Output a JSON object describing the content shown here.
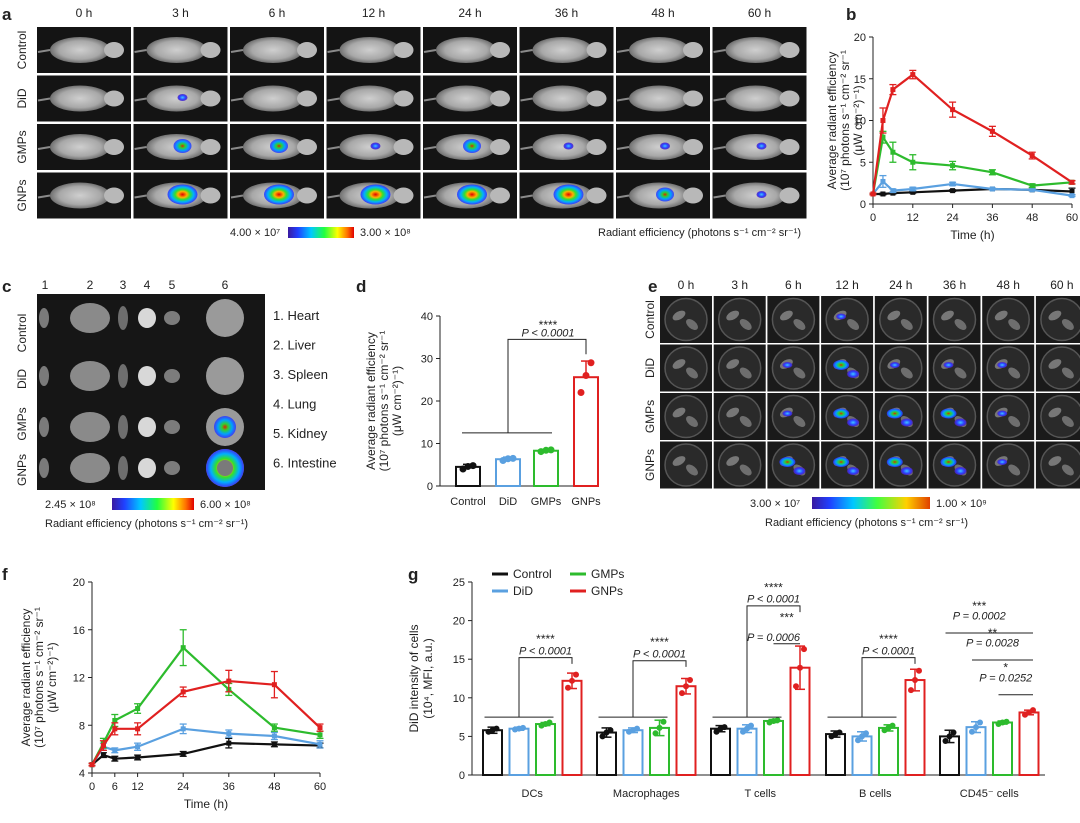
{
  "panels": {
    "a": {
      "letter": "a",
      "times": [
        "0 h",
        "3 h",
        "6 h",
        "12 h",
        "24 h",
        "36 h",
        "48 h",
        "60 h"
      ],
      "rows": [
        "Control",
        "DiD",
        "GMPs",
        "GNPs"
      ],
      "scale_min": "4.00 × 10⁷",
      "scale_max": "3.00 × 10⁸",
      "scale_label": "Radiant efficiency (photons s⁻¹ cm⁻² sr⁻¹)"
    },
    "c": {
      "letter": "c",
      "columns": [
        "1",
        "2",
        "3",
        "4",
        "5",
        "6"
      ],
      "rows": [
        "Control",
        "DiD",
        "GMPs",
        "GNPs"
      ],
      "legend": [
        "1. Heart",
        "2. Liver",
        "3. Spleen",
        "4. Lung",
        "5. Kidney",
        "6. Intestine"
      ],
      "scale_min": "2.45 × 10⁸",
      "scale_max": "6.00 × 10⁸",
      "scale_label": "Radiant efficiency (photons s⁻¹ cm⁻² sr⁻¹)"
    },
    "e": {
      "letter": "e",
      "times": [
        "0 h",
        "3 h",
        "6 h",
        "12 h",
        "24 h",
        "36 h",
        "48 h",
        "60 h"
      ],
      "rows": [
        "Control",
        "DiD",
        "GMPs",
        "GNPs"
      ],
      "scale_min": "3.00 × 10⁷",
      "scale_max": "1.00 × 10⁹",
      "scale_label": "Radiant efficiency (photons s⁻¹ cm⁻² sr⁻¹)"
    }
  },
  "chart_data": [
    {
      "id": "b",
      "type": "line",
      "letter": "b",
      "xlabel": "Time (h)",
      "ylabel": [
        "Average radiant efficiency",
        "(10⁷ photons s⁻¹ cm⁻² sr⁻¹",
        "(μW cm⁻²)⁻¹)"
      ],
      "xlim": [
        0,
        60
      ],
      "ylim": [
        0,
        20
      ],
      "xticks": [
        0,
        12,
        24,
        36,
        48,
        60
      ],
      "yticks": [
        0,
        5,
        10,
        15,
        20
      ],
      "series": [
        {
          "name": "Control",
          "color": "#111111",
          "x": [
            0,
            3,
            6,
            12,
            24,
            36,
            48,
            60
          ],
          "values": [
            1.2,
            1.2,
            1.3,
            1.4,
            1.6,
            1.8,
            1.7,
            1.5
          ],
          "err": [
            0.1,
            0.1,
            0.1,
            0.1,
            0.1,
            0.1,
            0.1,
            0.4
          ]
        },
        {
          "name": "DiD",
          "color": "#5aa0e0",
          "x": [
            0,
            3,
            6,
            12,
            24,
            36,
            48,
            60
          ],
          "values": [
            1.2,
            2.7,
            1.6,
            1.8,
            2.4,
            1.8,
            1.7,
            1.0
          ],
          "err": [
            0.1,
            0.7,
            0.2,
            0.2,
            0.2,
            0.1,
            0.1,
            0.1
          ]
        },
        {
          "name": "GMPs",
          "color": "#2dbb2d",
          "x": [
            0,
            3,
            6,
            12,
            24,
            36,
            48,
            60
          ],
          "values": [
            1.2,
            8.0,
            6.2,
            5.0,
            4.6,
            3.8,
            2.2,
            2.6
          ],
          "err": [
            0.1,
            0.7,
            1.2,
            0.9,
            0.5,
            0.3,
            0.2,
            0.2
          ]
        },
        {
          "name": "GNPs",
          "color": "#e02020",
          "x": [
            0,
            3,
            6,
            12,
            24,
            36,
            48,
            60
          ],
          "values": [
            1.2,
            10.0,
            13.7,
            15.5,
            11.3,
            8.7,
            5.8,
            2.6
          ],
          "err": [
            0.1,
            1.5,
            0.6,
            0.5,
            0.9,
            0.6,
            0.4,
            0.2
          ]
        }
      ]
    },
    {
      "id": "d",
      "type": "bar",
      "letter": "d",
      "categories": [
        "Control",
        "DiD",
        "GMPs",
        "GNPs"
      ],
      "colors": [
        "#111111",
        "#5aa0e0",
        "#2dbb2d",
        "#e02020"
      ],
      "values": [
        4.5,
        6.3,
        8.3,
        25.6
      ],
      "err": [
        0.6,
        0.5,
        0.3,
        3.8
      ],
      "points": [
        [
          4.0,
          4.6,
          4.8
        ],
        [
          6.0,
          6.4,
          6.5
        ],
        [
          8.1,
          8.4,
          8.5
        ],
        [
          22.0,
          26.0,
          29.0
        ]
      ],
      "ylim": [
        0,
        40
      ],
      "yticks": [
        0,
        10,
        20,
        30,
        40
      ],
      "ylabel": [
        "Average radiant efficiency",
        "(10⁷ photons s⁻¹ cm⁻² sr⁻¹",
        "(μW cm⁻²)⁻¹)"
      ],
      "sig_stars": "****",
      "sig_p": "P < 0.0001"
    },
    {
      "id": "f",
      "type": "line",
      "letter": "f",
      "xlabel": "Time (h)",
      "ylabel": [
        "Average radiant efficiency",
        "(10⁷ photons s⁻¹ cm⁻² sr⁻¹",
        "(μW cm⁻²)⁻¹)"
      ],
      "xlim": [
        0,
        60
      ],
      "ylim": [
        4,
        20
      ],
      "xticks": [
        0,
        6,
        12,
        24,
        36,
        48,
        60
      ],
      "yticks": [
        4,
        8,
        12,
        16,
        20
      ],
      "series": [
        {
          "name": "Control",
          "color": "#111111",
          "x": [
            0,
            3,
            6,
            12,
            24,
            36,
            48,
            60
          ],
          "values": [
            4.7,
            5.5,
            5.2,
            5.3,
            5.6,
            6.5,
            6.4,
            6.3
          ],
          "err": [
            0.1,
            0.2,
            0.2,
            0.2,
            0.2,
            0.4,
            0.2,
            0.2
          ]
        },
        {
          "name": "DiD",
          "color": "#5aa0e0",
          "x": [
            0,
            3,
            6,
            12,
            24,
            36,
            48,
            60
          ],
          "values": [
            4.7,
            6.2,
            5.9,
            6.2,
            7.7,
            7.3,
            7.1,
            6.4
          ],
          "err": [
            0.1,
            0.3,
            0.2,
            0.3,
            0.4,
            0.3,
            0.3,
            0.3
          ]
        },
        {
          "name": "GMPs",
          "color": "#2dbb2d",
          "x": [
            0,
            3,
            6,
            12,
            24,
            36,
            48,
            60
          ],
          "values": [
            4.7,
            6.5,
            8.4,
            9.4,
            14.5,
            11.0,
            7.8,
            7.2
          ],
          "err": [
            0.1,
            0.4,
            0.5,
            0.4,
            1.5,
            0.5,
            0.3,
            0.3
          ]
        },
        {
          "name": "GNPs",
          "color": "#e02020",
          "x": [
            0,
            3,
            6,
            12,
            24,
            36,
            48,
            60
          ],
          "values": [
            4.7,
            6.3,
            7.7,
            7.7,
            10.8,
            11.7,
            11.4,
            7.8
          ],
          "err": [
            0.1,
            0.4,
            0.5,
            0.5,
            0.4,
            0.9,
            1.1,
            0.3
          ]
        }
      ]
    },
    {
      "id": "g",
      "type": "bar",
      "letter": "g",
      "ylabel": [
        "DiD intensity of cells",
        "(10⁴, MFI, a.u.)"
      ],
      "ylim": [
        0,
        25
      ],
      "yticks": [
        0,
        5,
        10,
        15,
        20,
        25
      ],
      "categories": [
        "DCs",
        "Macrophages",
        "T cells",
        "B cells",
        "CD45⁻ cells"
      ],
      "series": [
        {
          "name": "Control",
          "color": "#111111",
          "values": [
            5.8,
            5.5,
            6.0,
            5.3,
            5.0
          ],
          "err": [
            0.4,
            0.6,
            0.4,
            0.4,
            0.8
          ],
          "points": [
            [
              5.6,
              5.8,
              6.0
            ],
            [
              5.0,
              5.5,
              5.8
            ],
            [
              5.6,
              6.0,
              6.2
            ],
            [
              5.0,
              5.3,
              5.5
            ],
            [
              4.4,
              5.0,
              5.5
            ]
          ]
        },
        {
          "name": "DiD",
          "color": "#5aa0e0",
          "values": [
            6.0,
            5.8,
            6.0,
            5.0,
            6.2
          ],
          "err": [
            0.2,
            0.3,
            0.5,
            0.6,
            0.7
          ],
          "points": [
            [
              5.9,
              6.0,
              6.1
            ],
            [
              5.6,
              5.8,
              6.0
            ],
            [
              5.6,
              6.0,
              6.4
            ],
            [
              4.5,
              5.0,
              5.4
            ],
            [
              5.6,
              6.2,
              6.8
            ]
          ]
        },
        {
          "name": "GMPs",
          "color": "#2dbb2d",
          "values": [
            6.6,
            6.1,
            7.0,
            6.1,
            6.8
          ],
          "err": [
            0.2,
            1.0,
            0.2,
            0.4,
            0.2
          ],
          "points": [
            [
              6.4,
              6.6,
              6.8
            ],
            [
              5.4,
              6.1,
              6.9
            ],
            [
              6.8,
              7.0,
              7.1
            ],
            [
              5.8,
              6.1,
              6.4
            ],
            [
              6.6,
              6.8,
              6.9
            ]
          ]
        },
        {
          "name": "GNPs",
          "color": "#e02020",
          "values": [
            12.2,
            11.5,
            13.9,
            12.3,
            8.1
          ],
          "err": [
            1.0,
            1.0,
            2.8,
            1.4,
            0.3
          ],
          "points": [
            [
              11.3,
              12.2,
              13.0
            ],
            [
              10.6,
              11.5,
              12.3
            ],
            [
              11.5,
              13.9,
              16.3
            ],
            [
              11.0,
              12.3,
              13.5
            ],
            [
              7.8,
              8.1,
              8.4
            ]
          ]
        }
      ],
      "annotations": [
        {
          "group": 0,
          "stars": "****",
          "p": "P < 0.0001"
        },
        {
          "group": 1,
          "stars": "****",
          "p": "P < 0.0001"
        },
        {
          "group": 2,
          "stars": "****",
          "p": "P < 0.0001"
        },
        {
          "group": 2,
          "stars": "***",
          "p": "P = 0.0006"
        },
        {
          "group": 3,
          "stars": "****",
          "p": "P < 0.0001"
        },
        {
          "group": 4,
          "stars": "***",
          "p": "P = 0.0002"
        },
        {
          "group": 4,
          "stars": "**",
          "p": "P = 0.0028"
        },
        {
          "group": 4,
          "stars": "*",
          "p": "P = 0.0252"
        }
      ]
    }
  ]
}
